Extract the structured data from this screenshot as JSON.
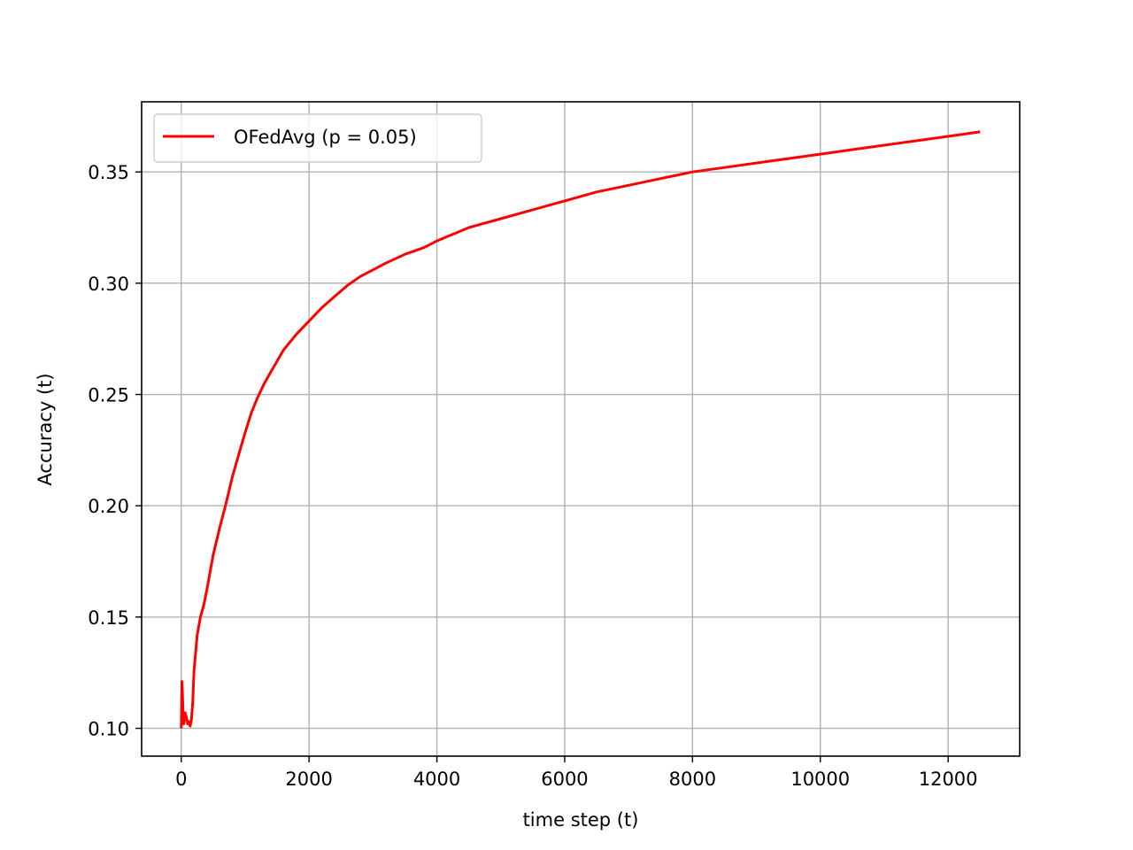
{
  "chart_data": {
    "type": "line",
    "title": "",
    "xlabel": "time step (t)",
    "ylabel": "Accuracy (t)",
    "xlim": [
      -620,
      13120
    ],
    "ylim": [
      0.0875,
      0.3815
    ],
    "xticks": [
      0,
      2000,
      4000,
      6000,
      8000,
      10000,
      12000
    ],
    "xtick_labels": [
      "0",
      "2000",
      "4000",
      "6000",
      "8000",
      "10000",
      "12000"
    ],
    "yticks": [
      0.1,
      0.15,
      0.2,
      0.25,
      0.3,
      0.35
    ],
    "ytick_labels": [
      "0.10",
      "0.15",
      "0.20",
      "0.25",
      "0.30",
      "0.35"
    ],
    "grid": true,
    "legend_position": "upper-left",
    "series": [
      {
        "name": "OFedAvg (p = 0.05)",
        "color": "#ff0000",
        "x": [
          0,
          10,
          20,
          30,
          40,
          60,
          80,
          100,
          120,
          140,
          160,
          180,
          200,
          250,
          300,
          350,
          400,
          500,
          600,
          700,
          800,
          900,
          1000,
          1100,
          1200,
          1300,
          1400,
          1500,
          1600,
          1800,
          2000,
          2200,
          2400,
          2600,
          2800,
          3000,
          3200,
          3500,
          3800,
          4000,
          4500,
          5000,
          5500,
          6000,
          6500,
          7000,
          7500,
          8000,
          8500,
          9000,
          9500,
          10000,
          10500,
          11000,
          11500,
          12000,
          12500
        ],
        "y": [
          0.1,
          0.121,
          0.115,
          0.105,
          0.102,
          0.107,
          0.105,
          0.102,
          0.103,
          0.101,
          0.104,
          0.112,
          0.126,
          0.142,
          0.15,
          0.155,
          0.162,
          0.178,
          0.19,
          0.201,
          0.213,
          0.223,
          0.233,
          0.242,
          0.249,
          0.255,
          0.26,
          0.265,
          0.27,
          0.277,
          0.283,
          0.289,
          0.294,
          0.299,
          0.303,
          0.306,
          0.309,
          0.313,
          0.316,
          0.319,
          0.325,
          0.329,
          0.333,
          0.337,
          0.341,
          0.344,
          0.347,
          0.35,
          0.352,
          0.354,
          0.356,
          0.358,
          0.36,
          0.362,
          0.364,
          0.366,
          0.368
        ]
      }
    ]
  }
}
